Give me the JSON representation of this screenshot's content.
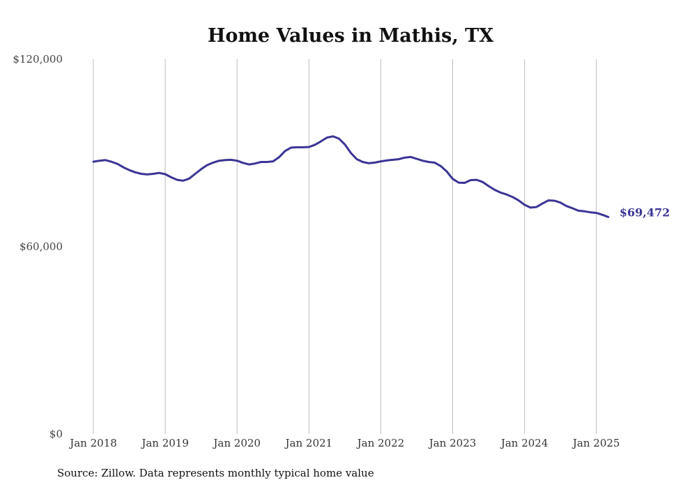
{
  "chart_data": {
    "type": "line",
    "title": "Home Values in Mathis, TX",
    "source_note": "Source: Zillow. Data represents monthly typical home value",
    "ylim": [
      0,
      120000
    ],
    "yticks": [
      {
        "value": 0,
        "label": "$0"
      },
      {
        "value": 60000,
        "label": "$60,000"
      },
      {
        "value": 120000,
        "label": "$120,000"
      }
    ],
    "xticks": [
      {
        "date": "2018-01",
        "label": "Jan 2018"
      },
      {
        "date": "2019-01",
        "label": "Jan 2019"
      },
      {
        "date": "2020-01",
        "label": "Jan 2020"
      },
      {
        "date": "2021-01",
        "label": "Jan 2021"
      },
      {
        "date": "2022-01",
        "label": "Jan 2022"
      },
      {
        "date": "2023-01",
        "label": "Jan 2023"
      },
      {
        "date": "2024-01",
        "label": "Jan 2024"
      },
      {
        "date": "2025-01",
        "label": "Jan 2025"
      }
    ],
    "x_range": [
      "2018-01",
      "2025-03"
    ],
    "grid": "vertical",
    "legend": "none",
    "series_color": "#3a3496",
    "end_label": "$69,472",
    "series": [
      {
        "x": [
          "2018-01",
          "2018-02",
          "2018-03",
          "2018-04",
          "2018-05",
          "2018-06",
          "2018-07",
          "2018-08",
          "2018-09",
          "2018-10",
          "2018-11",
          "2018-12",
          "2019-01",
          "2019-02",
          "2019-03",
          "2019-04",
          "2019-05",
          "2019-06",
          "2019-07",
          "2019-08",
          "2019-09",
          "2019-10",
          "2019-11",
          "2019-12",
          "2020-01",
          "2020-02",
          "2020-03",
          "2020-04",
          "2020-05",
          "2020-06",
          "2020-07",
          "2020-08",
          "2020-09",
          "2020-10",
          "2020-11",
          "2020-12",
          "2021-01",
          "2021-02",
          "2021-03",
          "2021-04",
          "2021-05",
          "2021-06",
          "2021-07",
          "2021-08",
          "2021-09",
          "2021-10",
          "2021-11",
          "2021-12",
          "2022-01",
          "2022-02",
          "2022-03",
          "2022-04",
          "2022-05",
          "2022-06",
          "2022-07",
          "2022-08",
          "2022-09",
          "2022-10",
          "2022-11",
          "2022-12",
          "2023-01",
          "2023-02",
          "2023-03",
          "2023-04",
          "2023-05",
          "2023-06",
          "2023-07",
          "2023-08",
          "2023-09",
          "2023-10",
          "2023-11",
          "2023-12",
          "2024-01",
          "2024-02",
          "2024-03",
          "2024-04",
          "2024-05",
          "2024-06",
          "2024-07",
          "2024-08",
          "2024-09",
          "2024-10",
          "2024-11",
          "2024-12",
          "2025-01",
          "2025-02",
          "2025-03"
        ],
        "values": [
          87200,
          87500,
          87700,
          87200,
          86500,
          85400,
          84500,
          83800,
          83300,
          83100,
          83300,
          83600,
          83200,
          82200,
          81400,
          81100,
          81800,
          83300,
          84800,
          86100,
          86900,
          87500,
          87700,
          87800,
          87500,
          86800,
          86300,
          86600,
          87100,
          87100,
          87300,
          88600,
          90600,
          91700,
          91800,
          91800,
          91900,
          92600,
          93700,
          94900,
          95300,
          94600,
          92700,
          90000,
          88000,
          87100,
          86700,
          86900,
          87300,
          87600,
          87800,
          88000,
          88500,
          88700,
          88100,
          87500,
          87100,
          86900,
          85800,
          84100,
          81700,
          80500,
          80400,
          81300,
          81400,
          80700,
          79400,
          78200,
          77300,
          76700,
          75900,
          74800,
          73400,
          72500,
          72700,
          73800,
          74800,
          74700,
          74100,
          73000,
          72300,
          71500,
          71300,
          71000,
          70800,
          70200,
          69472
        ]
      }
    ]
  }
}
